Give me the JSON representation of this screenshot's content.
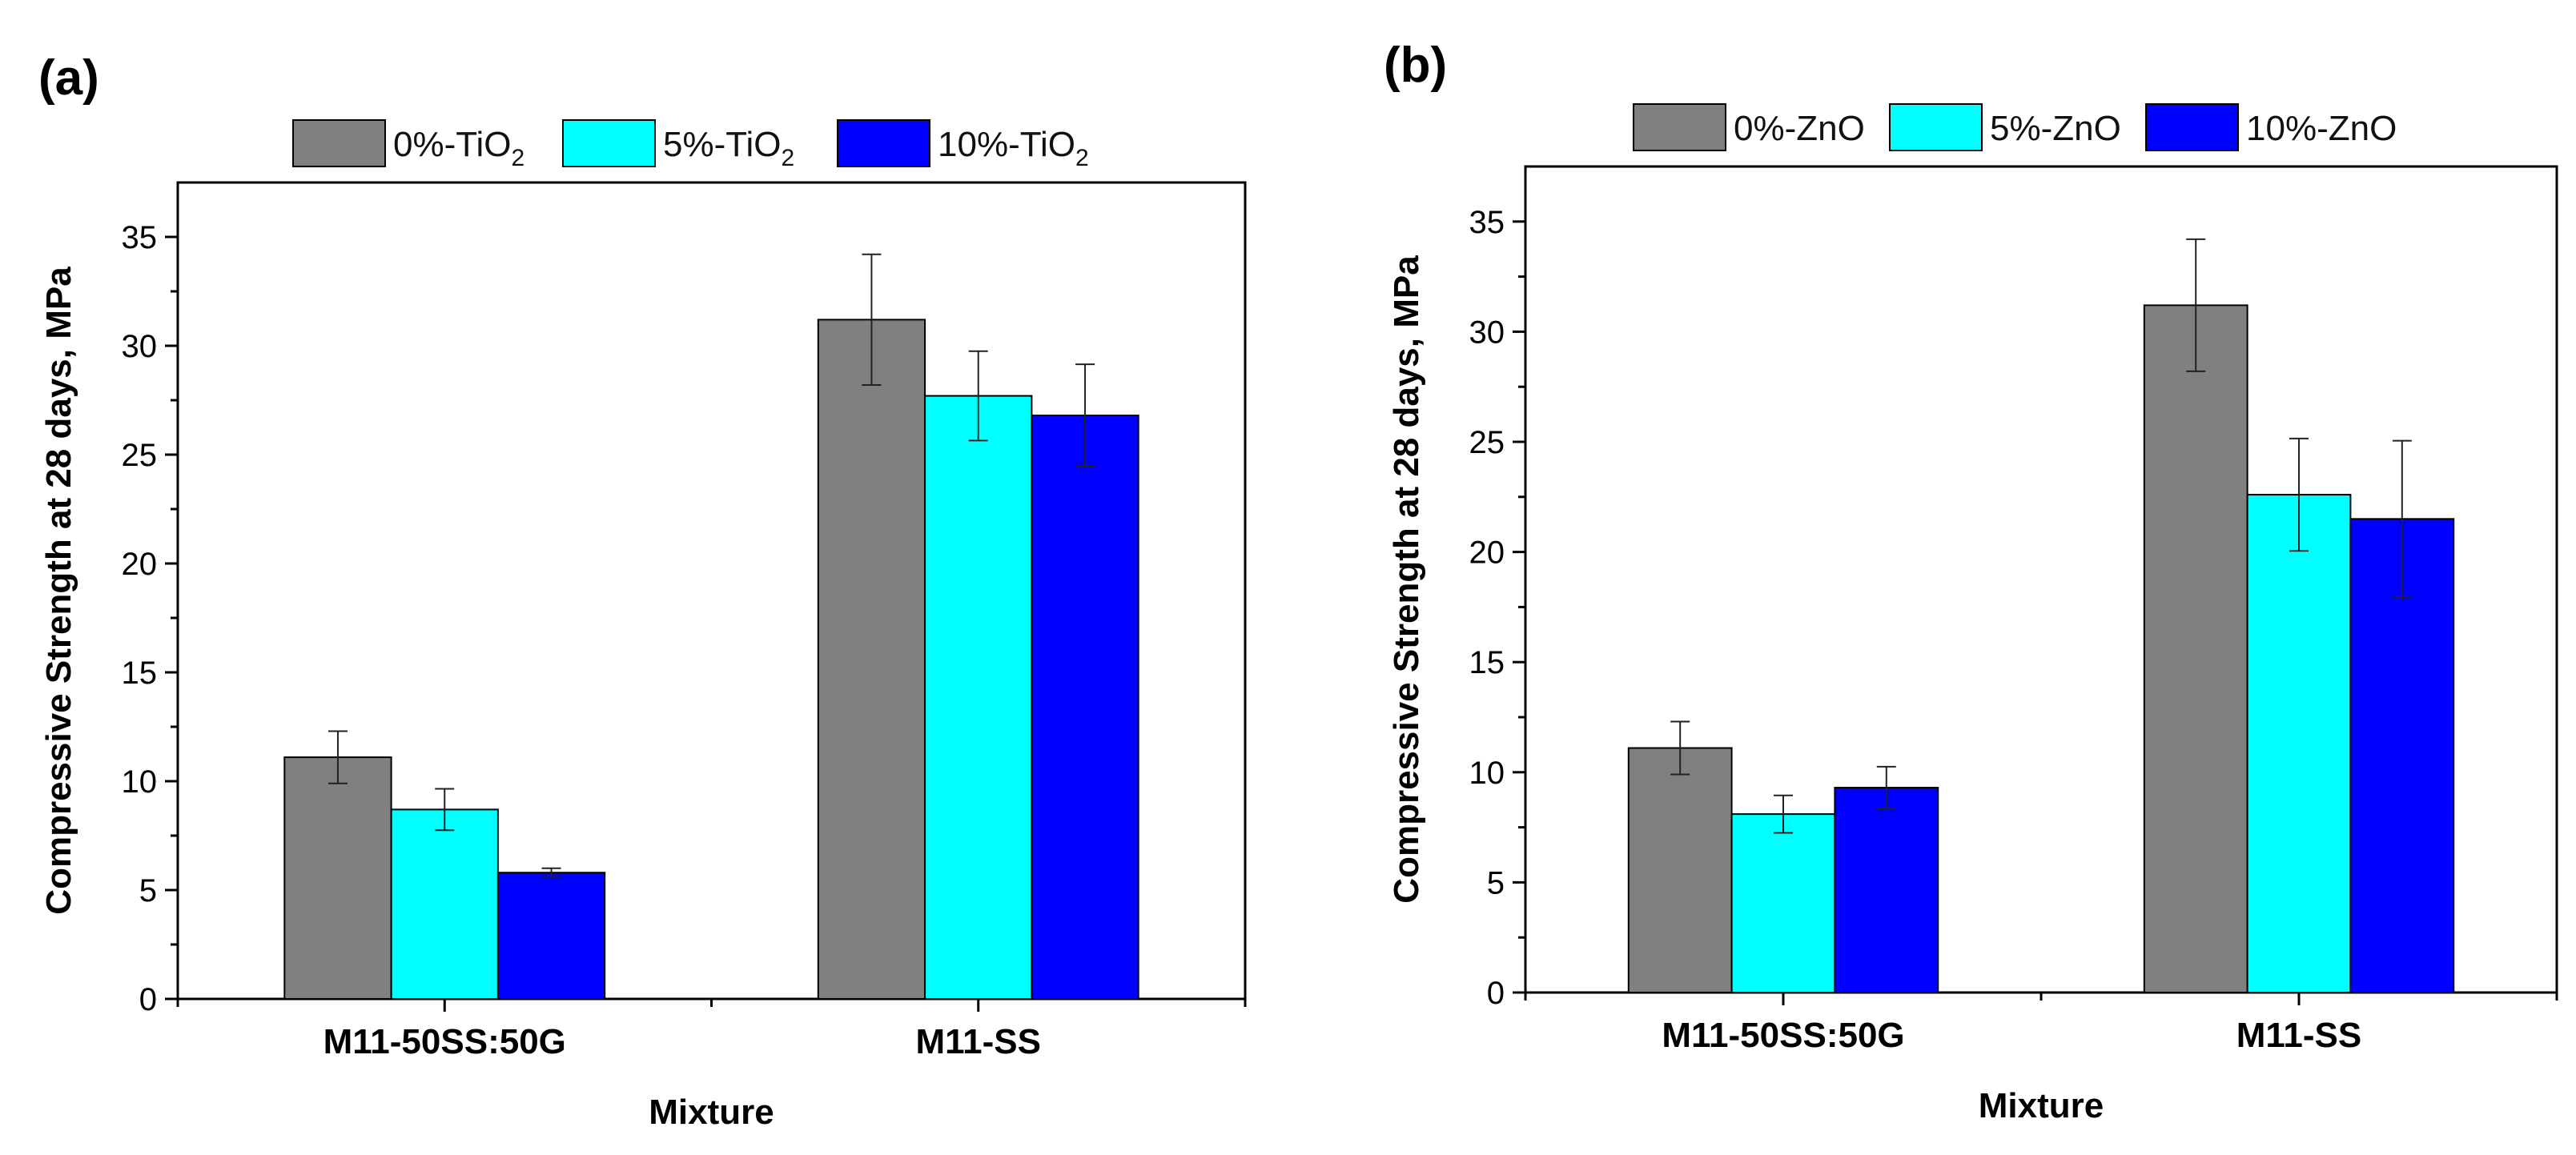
{
  "figure": {
    "panels": [
      {
        "id": "a",
        "label": "(a)"
      },
      {
        "id": "b",
        "label": "(b)"
      }
    ]
  },
  "colors": {
    "series0": "#808080",
    "series1": "#00ffff",
    "series2": "#0000ff",
    "axis": "#000000",
    "background": "#ffffff"
  },
  "chart_data": [
    {
      "type": "bar",
      "panel_label": "(a)",
      "categories": [
        "M11-50SS:50G",
        "M11-SS"
      ],
      "series": [
        {
          "name": "0%-TiO",
          "subscript": "2",
          "values": [
            11.1,
            31.2
          ],
          "errors": [
            1.2,
            3.0
          ]
        },
        {
          "name": "5%-TiO",
          "subscript": "2",
          "values": [
            8.7,
            27.7
          ],
          "errors": [
            0.95,
            2.05
          ]
        },
        {
          "name": "10%-TiO",
          "subscript": "2",
          "values": [
            5.8,
            26.8
          ],
          "errors": [
            0.2,
            2.35
          ]
        }
      ],
      "title": "",
      "xlabel": "Mixture",
      "ylabel": "Compressive Strength at 28 days, MPa",
      "ylim": [
        0,
        37.5
      ],
      "yticks": [
        "0",
        "5",
        "10",
        "15",
        "20",
        "25",
        "30",
        "35"
      ],
      "legend_position": "top"
    },
    {
      "type": "bar",
      "panel_label": "(b)",
      "categories": [
        "M11-50SS:50G",
        "M11-SS"
      ],
      "series": [
        {
          "name": "0%-ZnO",
          "subscript": "",
          "values": [
            11.1,
            31.2
          ],
          "errors": [
            1.2,
            3.0
          ]
        },
        {
          "name": "5%-ZnO",
          "subscript": "",
          "values": [
            8.1,
            22.6
          ],
          "errors": [
            0.85,
            2.55
          ]
        },
        {
          "name": "10%-ZnO",
          "subscript": "",
          "values": [
            9.3,
            21.5
          ],
          "errors": [
            0.95,
            3.55
          ]
        }
      ],
      "title": "",
      "xlabel": "Mixture",
      "ylabel": "Compressive Strength at 28 days, MPa",
      "ylim": [
        0,
        37.5
      ],
      "yticks": [
        "0",
        "5",
        "10",
        "15",
        "20",
        "25",
        "30",
        "35"
      ],
      "legend_position": "top"
    }
  ]
}
